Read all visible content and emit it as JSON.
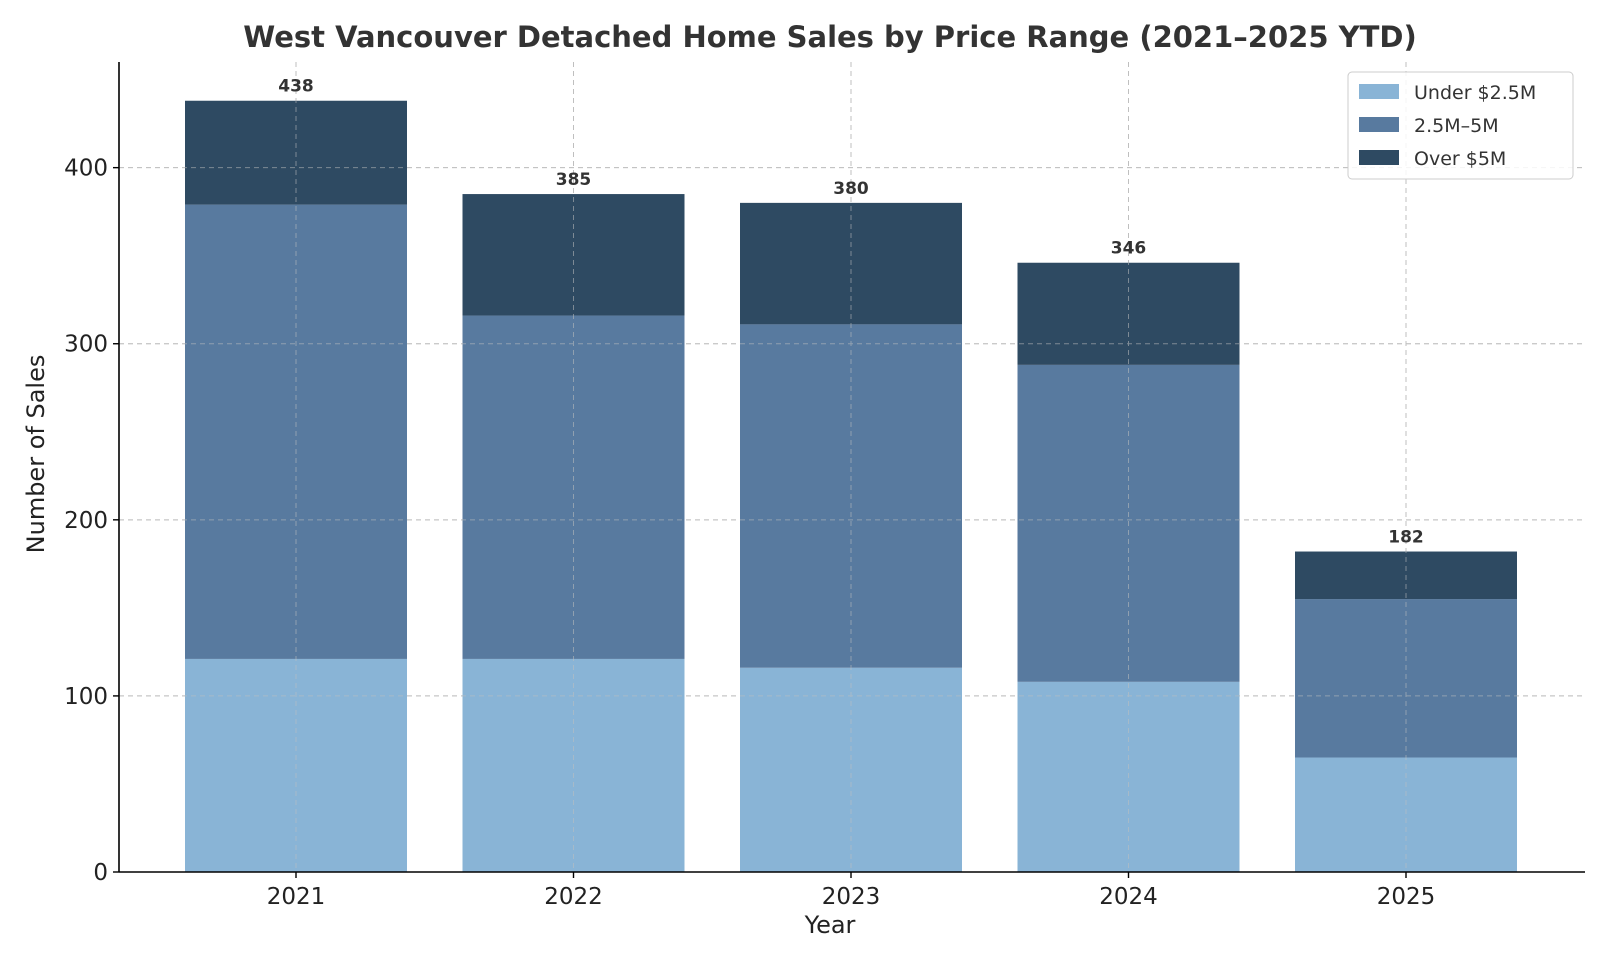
{
  "chart_data": {
    "type": "bar",
    "stacked": true,
    "title": "West Vancouver Detached Home Sales by Price Range (2021–2025 YTD)",
    "xlabel": "Year",
    "ylabel": "Number of Sales",
    "categories": [
      "2021",
      "2022",
      "2023",
      "2024",
      "2025"
    ],
    "series": [
      {
        "name": "Under $2.5M",
        "color": "#89b4d6",
        "values": [
          121,
          121,
          116,
          108,
          65
        ]
      },
      {
        "name": "2.5M–5M",
        "color": "#587a9f",
        "values": [
          258,
          195,
          195,
          180,
          90
        ]
      },
      {
        "name": "Over $5M",
        "color": "#2e4a62",
        "values": [
          59,
          69,
          69,
          58,
          27
        ]
      }
    ],
    "totals": [
      438,
      385,
      380,
      346,
      182
    ],
    "ylim": [
      0,
      460
    ],
    "yticks": [
      0,
      100,
      200,
      300,
      400
    ],
    "grid": true,
    "legend_position": "top-right"
  }
}
